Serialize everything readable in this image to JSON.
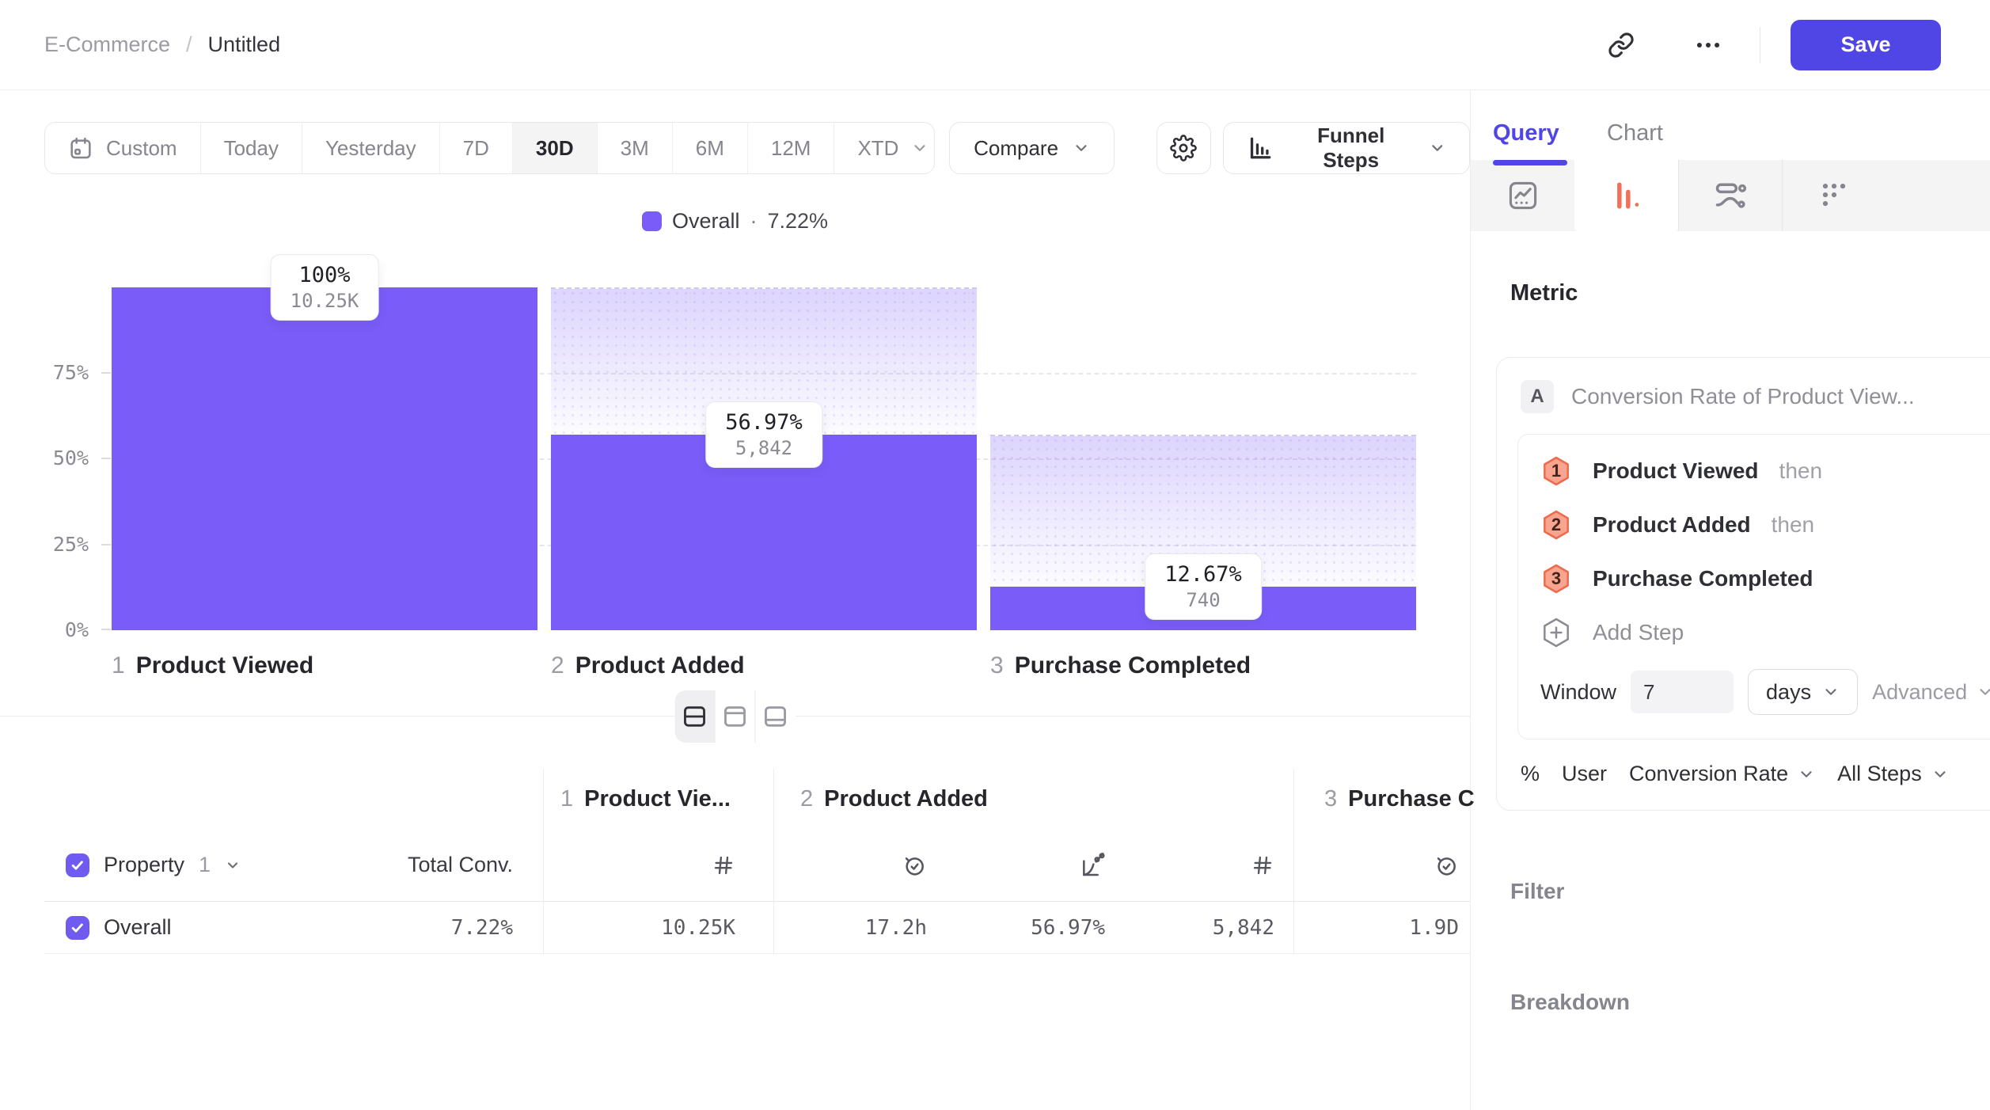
{
  "colors": {
    "bar": "#7a5cf8",
    "accent": "#4f46e5",
    "funnel_icon": "#f0705a",
    "hex_fill": "#f8a48e",
    "hex_stroke": "#ee6a4d",
    "checkbox": "#6f5bf0"
  },
  "header": {
    "breadcrumb_parent": "E-Commerce",
    "breadcrumb_sep": "/",
    "breadcrumb_current": "Untitled",
    "save_label": "Save"
  },
  "toolbar": {
    "date_ranges": [
      "Custom",
      "Today",
      "Yesterday",
      "7D",
      "30D",
      "3M",
      "6M",
      "12M",
      "XTD"
    ],
    "active_range": "30D",
    "compare_label": "Compare",
    "view_label": "Funnel Steps"
  },
  "legend": {
    "label": "Overall",
    "separator": "·",
    "value": "7.22%"
  },
  "chart_data": {
    "type": "funnel-bar",
    "categories": [
      "Product Viewed",
      "Product Added",
      "Purchase Completed"
    ],
    "y_ticks": [
      "75%",
      "50%",
      "25%",
      "0%"
    ],
    "ylim": [
      0,
      100
    ],
    "grid": "dashed-horizontal",
    "legend_position": "top-center",
    "series": [
      {
        "name": "Overall",
        "overall_conversion": "7.22%",
        "steps": [
          {
            "num": "1",
            "label": "Product Viewed",
            "pct": "100%",
            "count": "10.25K",
            "pct_value": 100,
            "prev_pct_value": 100
          },
          {
            "num": "2",
            "label": "Product Added",
            "pct": "56.97%",
            "count": "5,842",
            "pct_value": 56.97,
            "prev_pct_value": 100
          },
          {
            "num": "3",
            "label": "Purchase Completed",
            "pct": "12.67%",
            "count": "740",
            "pct_value": 12.67,
            "prev_pct_value": 56.97
          }
        ]
      }
    ]
  },
  "table": {
    "property_label": "Property",
    "property_num": "1",
    "total_conv_label": "Total Conv.",
    "col_groups": [
      {
        "num": "1",
        "label": "Product Vie..."
      },
      {
        "num": "2",
        "label": "Product Added"
      },
      {
        "num": "3",
        "label": "Purchase C"
      }
    ],
    "row": {
      "label": "Overall",
      "total_conv": "7.22%",
      "step1_count": "10.25K",
      "step2_avg_time": "17.2h",
      "step2_conv": "56.97%",
      "step2_count": "5,842",
      "step3_avg_time": "1.9D"
    }
  },
  "panel": {
    "tabs": [
      {
        "label": "Query"
      },
      {
        "label": "Chart"
      }
    ],
    "active_tab": "Query",
    "metric_heading": "Metric",
    "metric": {
      "badge": "A",
      "title": "Conversion Rate of Product View...",
      "steps": [
        {
          "num": "1",
          "label": "Product Viewed",
          "suffix": "then"
        },
        {
          "num": "2",
          "label": "Product Added",
          "suffix": "then"
        },
        {
          "num": "3",
          "label": "Purchase Completed",
          "suffix": ""
        }
      ],
      "add_step_label": "Add Step",
      "window_label": "Window",
      "window_value": "7",
      "window_unit": "days",
      "advanced_label": "Advanced",
      "footer": {
        "symbol": "%",
        "entity": "User",
        "measure": "Conversion Rate",
        "scope": "All Steps"
      }
    },
    "filter_label": "Filter",
    "breakdown_label": "Breakdown"
  }
}
